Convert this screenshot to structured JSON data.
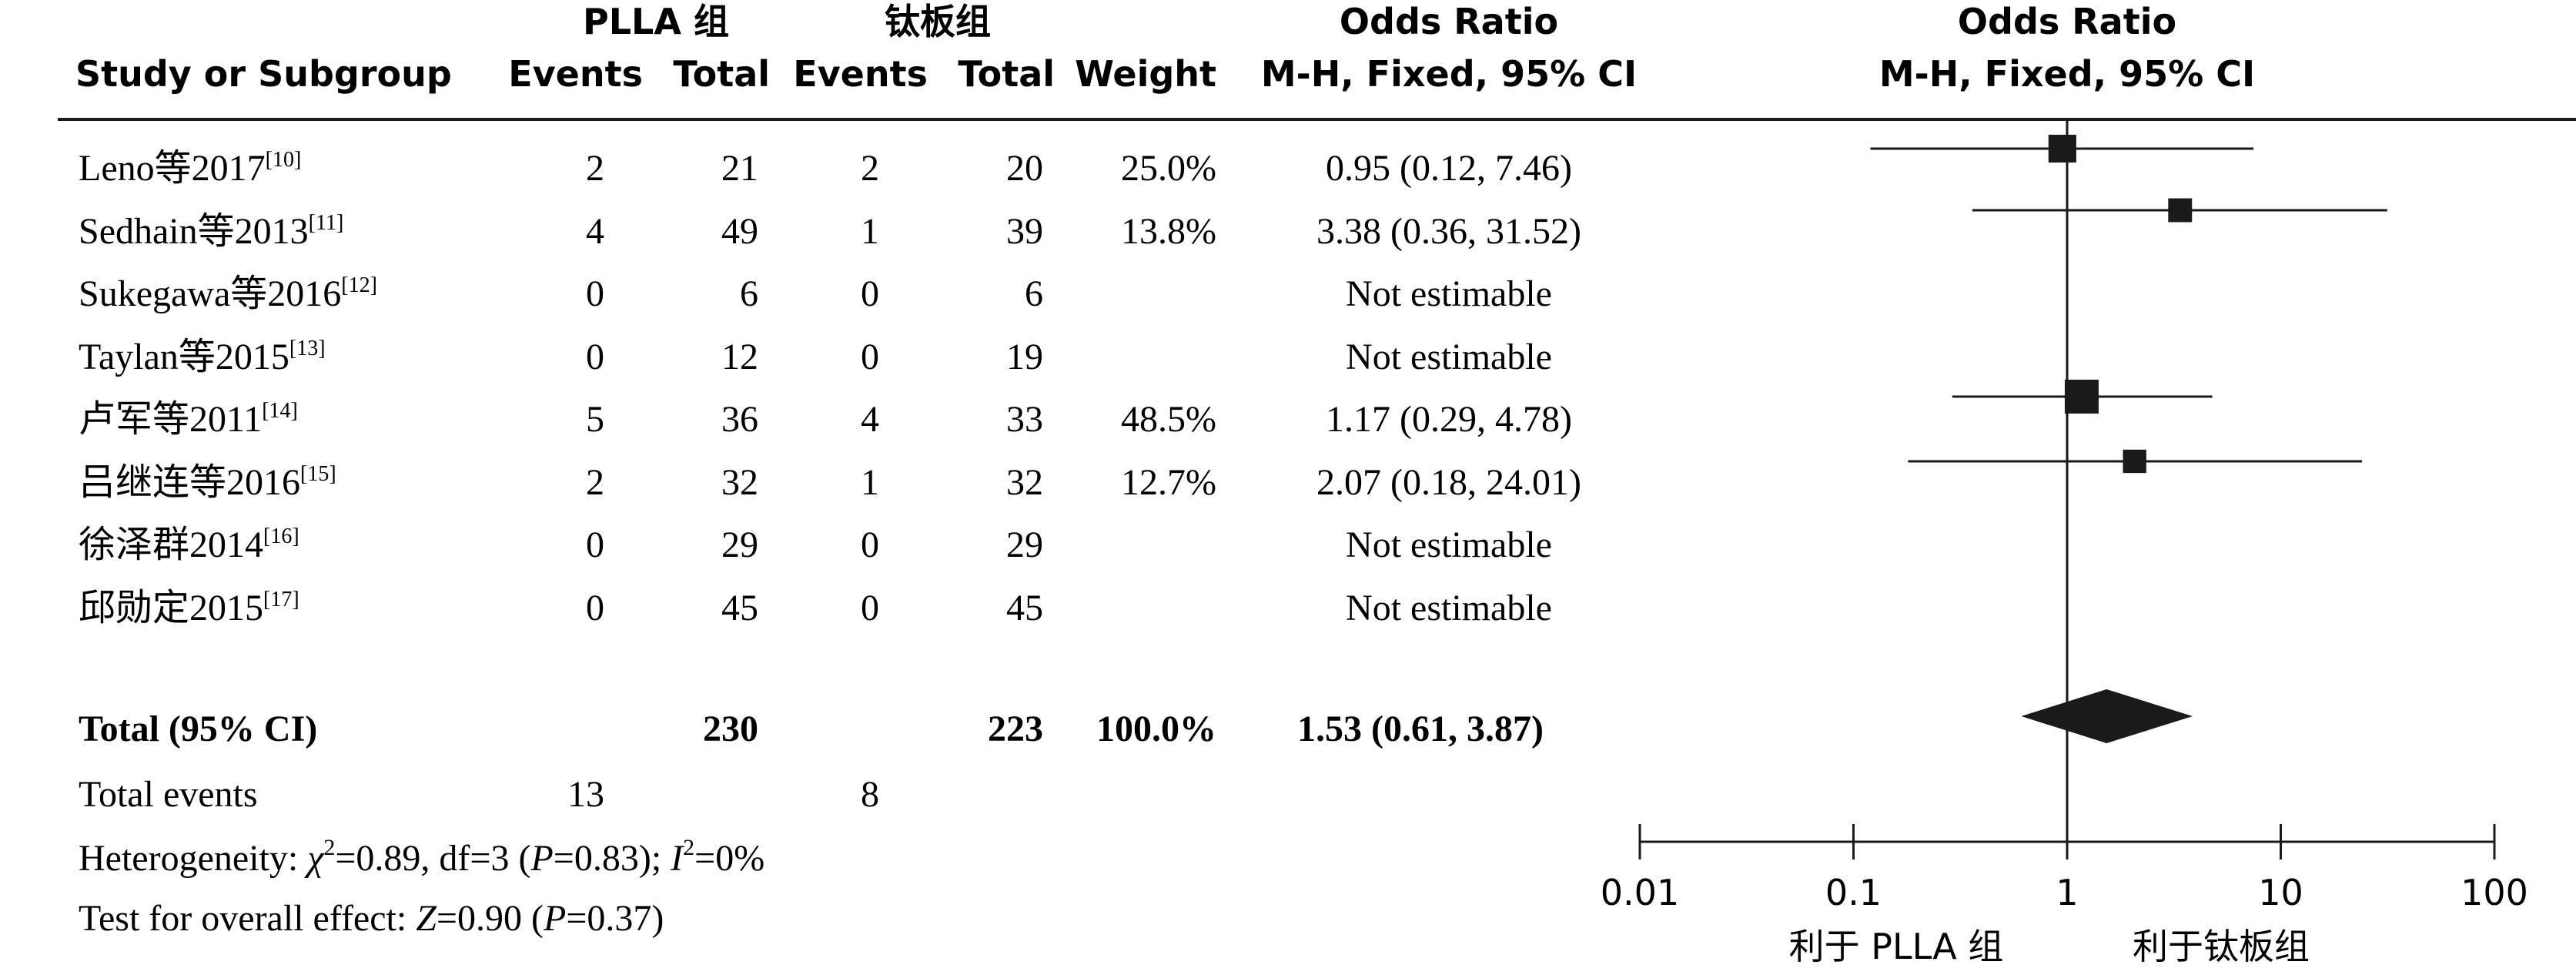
{
  "headers": {
    "study": "Study or Subgroup",
    "group1": "PLLA 组",
    "group2": "钛板组",
    "events": "Events",
    "total": "Total",
    "weight": "Weight",
    "or_title": "Odds Ratio",
    "or_method": "M-H, Fixed, 95% CI",
    "plot_title": "Odds Ratio",
    "plot_method": "M-H, Fixed, 95% CI"
  },
  "studies": [
    {
      "name": "Leno等2017",
      "ref": "[10]",
      "e1": "2",
      "t1": "21",
      "e2": "2",
      "t2": "20",
      "weight": "25.0%",
      "ci_text": "0.95 (0.12, 7.46)"
    },
    {
      "name": "Sedhain等2013",
      "ref": "[11]",
      "e1": "4",
      "t1": "49",
      "e2": "1",
      "t2": "39",
      "weight": "13.8%",
      "ci_text": "3.38 (0.36, 31.52)"
    },
    {
      "name": "Sukegawa等2016",
      "ref": "[12]",
      "e1": "0",
      "t1": "6",
      "e2": "0",
      "t2": "6",
      "weight": "",
      "ci_text": "Not estimable"
    },
    {
      "name": "Taylan等2015",
      "ref": "[13]",
      "e1": "0",
      "t1": "12",
      "e2": "0",
      "t2": "19",
      "weight": "",
      "ci_text": "Not estimable"
    },
    {
      "name": "卢军等2011",
      "ref": "[14]",
      "e1": "5",
      "t1": "36",
      "e2": "4",
      "t2": "33",
      "weight": "48.5%",
      "ci_text": "1.17 (0.29, 4.78)"
    },
    {
      "name": "吕继连等2016",
      "ref": "[15]",
      "e1": "2",
      "t1": "32",
      "e2": "1",
      "t2": "32",
      "weight": "12.7%",
      "ci_text": "2.07 (0.18, 24.01)"
    },
    {
      "name": "徐泽群2014",
      "ref": "[16]",
      "e1": "0",
      "t1": "29",
      "e2": "0",
      "t2": "29",
      "weight": "",
      "ci_text": "Not estimable"
    },
    {
      "name": "邱勋定2015",
      "ref": "[17]",
      "e1": "0",
      "t1": "45",
      "e2": "0",
      "t2": "45",
      "weight": "",
      "ci_text": "Not estimable"
    }
  ],
  "total": {
    "label": "Total (95% CI)",
    "t1": "230",
    "t2": "223",
    "weight": "100.0%",
    "ci_text": "1.53 (0.61, 3.87)"
  },
  "total_events": {
    "label": "Total events",
    "e1": "13",
    "e2": "8"
  },
  "heterogeneity": {
    "prefix": "Heterogeneity: ",
    "chi_sym": "χ",
    "chi_sup": "2",
    "mid1": "=0.89, df=3 (",
    "p_sym": "P",
    "mid2": "=0.83); ",
    "i_sym": "I",
    "i_sup": "2",
    "end": "=0%"
  },
  "overall_effect": {
    "prefix": "Test for overall effect: ",
    "z_sym": "Z",
    "mid": "=0.90 (",
    "p_sym": "P",
    "end": "=0.37)"
  },
  "favours": {
    "left": "利于 PLLA 组",
    "right": "利于钛板组"
  },
  "chart_data": {
    "type": "forest",
    "scale": "log",
    "xlim": [
      0.01,
      100
    ],
    "ticks": [
      "0.01",
      "0.1",
      "1",
      "10",
      "100"
    ],
    "reference_line": 1,
    "series": [
      {
        "name": "Leno等2017",
        "or": 0.95,
        "lo": 0.12,
        "hi": 7.46,
        "weight": 25.0
      },
      {
        "name": "Sedhain等2013",
        "or": 3.38,
        "lo": 0.36,
        "hi": 31.52,
        "weight": 13.8
      },
      {
        "name": "Sukegawa等2016",
        "or": null,
        "lo": null,
        "hi": null,
        "weight": null
      },
      {
        "name": "Taylan等2015",
        "or": null,
        "lo": null,
        "hi": null,
        "weight": null
      },
      {
        "name": "卢军等2011",
        "or": 1.17,
        "lo": 0.29,
        "hi": 4.78,
        "weight": 48.5
      },
      {
        "name": "吕继连等2016",
        "or": 2.07,
        "lo": 0.18,
        "hi": 24.01,
        "weight": 12.7
      },
      {
        "name": "徐泽群2014",
        "or": null,
        "lo": null,
        "hi": null,
        "weight": null
      },
      {
        "name": "邱勋定2015",
        "or": null,
        "lo": null,
        "hi": null,
        "weight": null
      }
    ],
    "pooled": {
      "or": 1.53,
      "lo": 0.61,
      "hi": 3.87
    }
  }
}
